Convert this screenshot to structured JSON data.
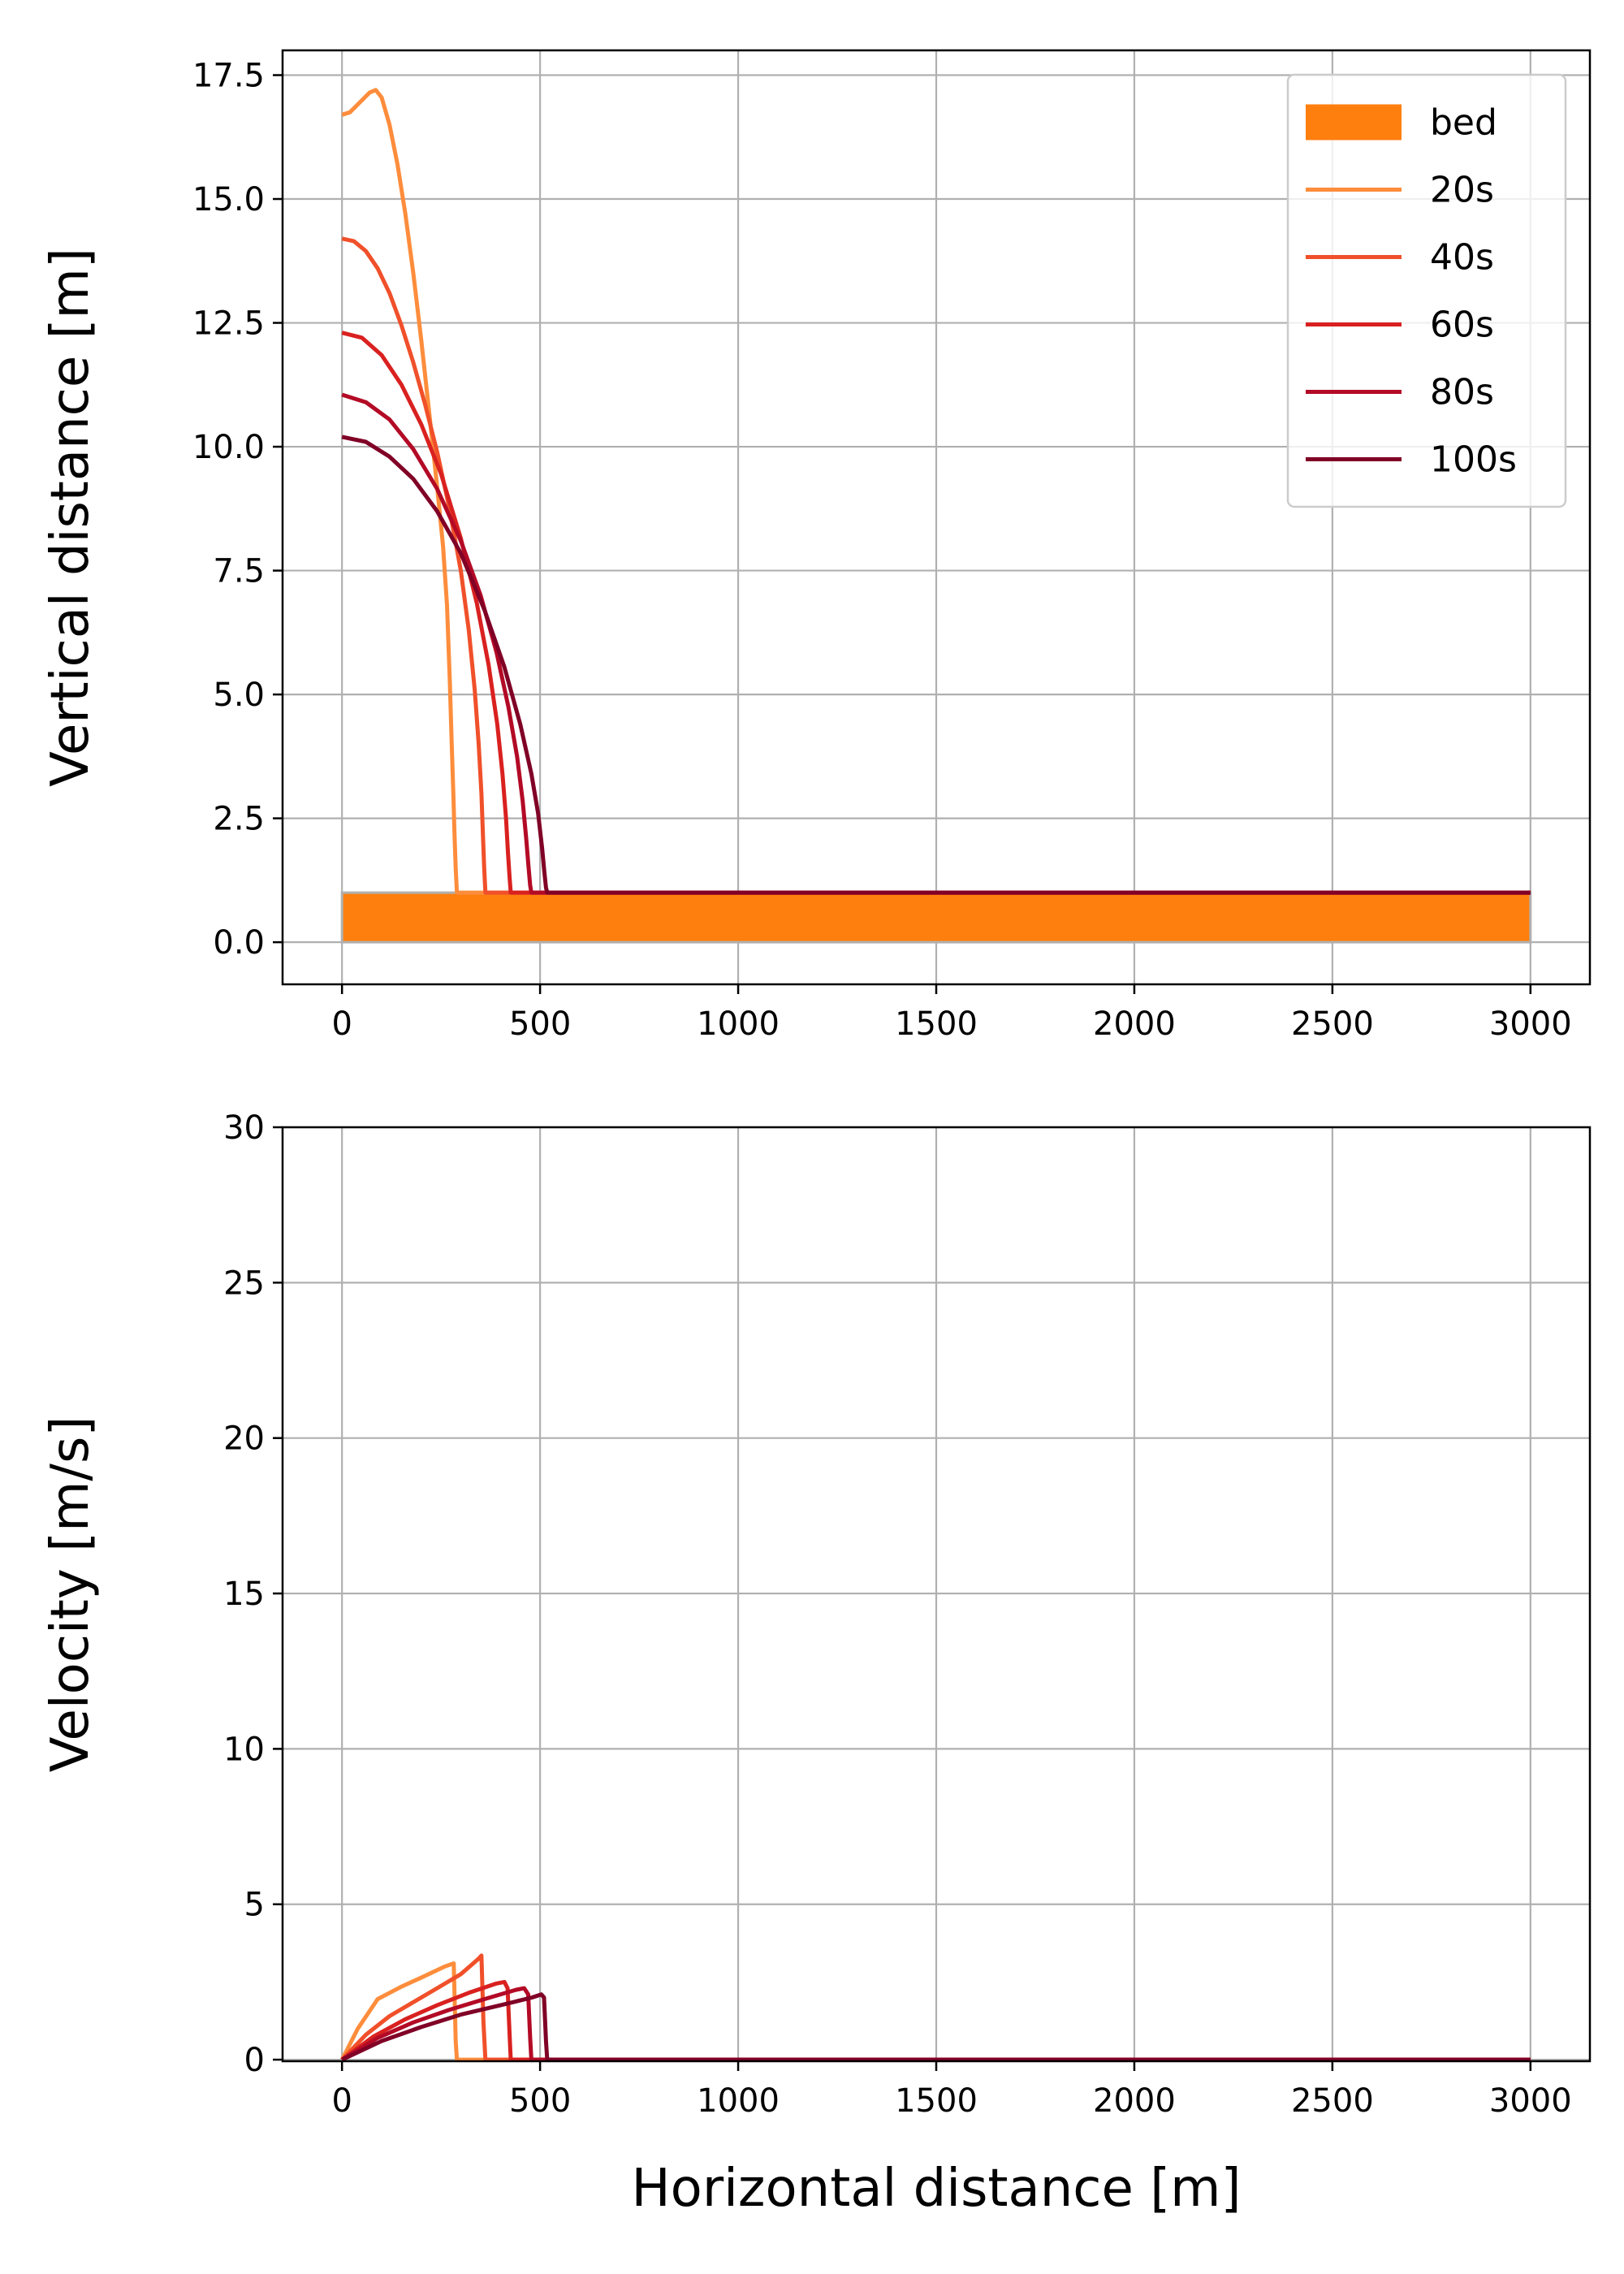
{
  "chart_data": [
    {
      "type": "line",
      "xlabel": "",
      "ylabel": "Vertical distance [m]",
      "xlim": [
        -150,
        3150
      ],
      "ylim": [
        -0.85,
        18.0
      ],
      "xticks": [
        0,
        500,
        1000,
        1500,
        2000,
        2500,
        3000
      ],
      "xtick_labels": [
        "0",
        "500",
        "1000",
        "1500",
        "2000",
        "2500",
        "3000"
      ],
      "yticks": [
        0.0,
        2.5,
        5.0,
        7.5,
        10.0,
        12.5,
        15.0,
        17.5
      ],
      "ytick_labels": [
        "0.0",
        "2.5",
        "5.0",
        "7.5",
        "10.0",
        "12.5",
        "15.0",
        "17.5"
      ],
      "grid": true,
      "legend": {
        "position": "top-right",
        "entries": [
          {
            "label": "bed",
            "color": "#ff7f0e",
            "kind": "patch"
          },
          {
            "label": "20s",
            "color": "#fd8d3c",
            "kind": "line"
          },
          {
            "label": "40s",
            "color": "#f0502a",
            "kind": "line"
          },
          {
            "label": "60s",
            "color": "#d92120",
            "kind": "line"
          },
          {
            "label": "80s",
            "color": "#b30a26",
            "kind": "line"
          },
          {
            "label": "100s",
            "color": "#800026",
            "kind": "line"
          }
        ]
      },
      "bed": {
        "label": "bed",
        "x": [
          0,
          3000
        ],
        "y_bottom": 0.0,
        "y_top": 1.0,
        "color": "#ff7f0e",
        "edge_color": "#b0b0b0"
      },
      "series": [
        {
          "name": "20s",
          "color": "#fd8d3c",
          "x": [
            0,
            20,
            45,
            70,
            85,
            100,
            120,
            140,
            160,
            180,
            200,
            220,
            240,
            255,
            265,
            272,
            277,
            281,
            284,
            287,
            290,
            3000
          ],
          "y": [
            16.7,
            16.75,
            16.95,
            17.15,
            17.2,
            17.05,
            16.5,
            15.7,
            14.7,
            13.5,
            12.15,
            10.7,
            9.2,
            8.0,
            6.8,
            5.3,
            4.0,
            3.0,
            2.2,
            1.5,
            1.0,
            1.0
          ]
        },
        {
          "name": "40s",
          "color": "#f0502a",
          "x": [
            0,
            30,
            60,
            90,
            120,
            150,
            180,
            210,
            240,
            270,
            300,
            320,
            335,
            345,
            352,
            356,
            359,
            362,
            3000
          ],
          "y": [
            14.2,
            14.15,
            13.95,
            13.6,
            13.1,
            12.45,
            11.7,
            10.85,
            9.9,
            8.8,
            7.5,
            6.3,
            5.1,
            4.0,
            3.0,
            2.1,
            1.5,
            1.0,
            1.0
          ]
        },
        {
          "name": "60s",
          "color": "#d92120",
          "x": [
            0,
            50,
            100,
            150,
            200,
            250,
            300,
            340,
            370,
            392,
            405,
            414,
            419,
            423,
            426,
            3000
          ],
          "y": [
            12.3,
            12.2,
            11.85,
            11.25,
            10.45,
            9.45,
            8.15,
            6.85,
            5.6,
            4.4,
            3.4,
            2.5,
            1.8,
            1.3,
            1.0,
            1.0
          ]
        },
        {
          "name": "80s",
          "color": "#b30a26",
          "x": [
            0,
            60,
            120,
            180,
            240,
            300,
            350,
            390,
            420,
            442,
            456,
            465,
            471,
            475,
            478,
            3000
          ],
          "y": [
            11.05,
            10.9,
            10.55,
            9.95,
            9.15,
            8.1,
            7.0,
            5.85,
            4.75,
            3.75,
            2.85,
            2.1,
            1.5,
            1.15,
            1.0,
            1.0
          ]
        },
        {
          "name": "100s",
          "color": "#800026",
          "x": [
            0,
            60,
            120,
            180,
            240,
            300,
            360,
            410,
            450,
            478,
            495,
            505,
            511,
            515,
            518,
            3000
          ],
          "y": [
            10.2,
            10.1,
            9.8,
            9.35,
            8.7,
            7.85,
            6.7,
            5.55,
            4.4,
            3.4,
            2.6,
            1.9,
            1.4,
            1.1,
            1.0,
            1.0
          ]
        }
      ]
    },
    {
      "type": "line",
      "xlabel": "Horizontal distance [m]",
      "ylabel": "Velocity [m/s]",
      "xlim": [
        -150,
        3150
      ],
      "ylim": [
        -0.05,
        30.0
      ],
      "xticks": [
        0,
        500,
        1000,
        1500,
        2000,
        2500,
        3000
      ],
      "xtick_labels": [
        "0",
        "500",
        "1000",
        "1500",
        "2000",
        "2500",
        "3000"
      ],
      "yticks": [
        0,
        5,
        10,
        15,
        20,
        25,
        30
      ],
      "ytick_labels": [
        "0",
        "5",
        "10",
        "15",
        "20",
        "25",
        "30"
      ],
      "grid": true,
      "series": [
        {
          "name": "20s",
          "color": "#fd8d3c",
          "x": [
            0,
            40,
            90,
            150,
            210,
            260,
            282,
            287,
            290,
            3000
          ],
          "y": [
            0,
            1.0,
            1.95,
            2.35,
            2.7,
            3.0,
            3.1,
            0.6,
            0,
            0
          ]
        },
        {
          "name": "40s",
          "color": "#f0502a",
          "x": [
            0,
            60,
            120,
            180,
            240,
            300,
            345,
            352,
            357,
            362,
            3000
          ],
          "y": [
            0,
            0.8,
            1.4,
            1.85,
            2.3,
            2.75,
            3.25,
            3.35,
            1.2,
            0,
            0
          ]
        },
        {
          "name": "60s",
          "color": "#d92120",
          "x": [
            0,
            80,
            160,
            240,
            320,
            390,
            410,
            418,
            423,
            426,
            3000
          ],
          "y": [
            0,
            0.75,
            1.3,
            1.75,
            2.15,
            2.45,
            2.5,
            2.3,
            0.8,
            0,
            0
          ]
        },
        {
          "name": "80s",
          "color": "#b30a26",
          "x": [
            0,
            90,
            180,
            270,
            360,
            440,
            460,
            470,
            475,
            478,
            3000
          ],
          "y": [
            0,
            0.7,
            1.2,
            1.6,
            1.95,
            2.25,
            2.3,
            2.1,
            0.7,
            0,
            0
          ]
        },
        {
          "name": "100s",
          "color": "#800026",
          "x": [
            0,
            100,
            200,
            300,
            400,
            480,
            503,
            510,
            515,
            518,
            3000
          ],
          "y": [
            0,
            0.6,
            1.05,
            1.45,
            1.75,
            2.0,
            2.1,
            2.0,
            0.6,
            0,
            0
          ]
        }
      ]
    }
  ]
}
